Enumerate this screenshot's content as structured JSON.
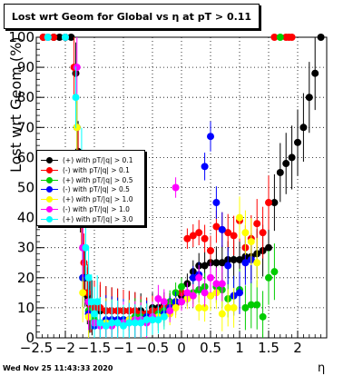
{
  "title": "Lost wrt Geom for Global vs   η at pT > 0.11",
  "footer": "Wed Nov 25 11:43:33 2020",
  "chart_data": {
    "type": "scatter",
    "xlabel": "η",
    "ylabel": "Lost wrt Geom (%)",
    "xlim": [
      -2.5,
      2.5
    ],
    "ylim": [
      0,
      100
    ],
    "x_ticks": [
      "-2.5",
      "-2",
      "-1.5",
      "-1",
      "-0.5",
      "0",
      "0.5",
      "1",
      "1.5",
      "2"
    ],
    "y_ticks": [
      "0",
      "10",
      "20",
      "30",
      "40",
      "50",
      "60",
      "70",
      "80",
      "90",
      "100"
    ],
    "grid": true,
    "legend_position": "left-middle",
    "series": [
      {
        "name": "(+) with pT/|q| > 0.1",
        "color": "#000000",
        "x": [
          -2.38,
          -2.3,
          -2.2,
          -2.1,
          -2.0,
          -1.9,
          -1.82,
          -1.78,
          -1.74,
          -1.7,
          -1.66,
          -1.62,
          -1.58,
          -1.54,
          -1.5,
          -1.4,
          -1.3,
          -1.2,
          -1.1,
          -1.0,
          -0.9,
          -0.8,
          -0.7,
          -0.6,
          -0.5,
          -0.4,
          -0.3,
          -0.2,
          -0.1,
          0.0,
          0.1,
          0.2,
          0.3,
          0.4,
          0.5,
          0.6,
          0.7,
          0.8,
          0.9,
          1.0,
          1.1,
          1.2,
          1.3,
          1.4,
          1.5,
          1.6,
          1.7,
          1.8,
          1.9,
          2.0,
          2.1,
          2.2,
          2.3,
          2.4
        ],
        "y": [
          100,
          100,
          100,
          100,
          100,
          100,
          88,
          62,
          45,
          30,
          20,
          14,
          11,
          10,
          10,
          9,
          9,
          9,
          9,
          9,
          9,
          9,
          9,
          8,
          10,
          10,
          11,
          11,
          12,
          14,
          18,
          22,
          24,
          24,
          25,
          25,
          25,
          26,
          26,
          26,
          27,
          27,
          28,
          29,
          30,
          45,
          55,
          58,
          60,
          65,
          70,
          80,
          88,
          100
        ]
      },
      {
        "name": "(-) with pT/|q| > 0.1",
        "color": "#ff0000",
        "x": [
          -2.38,
          -2.2,
          -2.0,
          -1.85,
          -1.78,
          -1.72,
          -1.68,
          -1.62,
          -1.56,
          -1.5,
          -1.4,
          -1.3,
          -1.2,
          -1.1,
          -1.0,
          -0.9,
          -0.8,
          -0.7,
          -0.6,
          -0.5,
          -0.4,
          -0.3,
          -0.2,
          -0.1,
          0.0,
          0.1,
          0.2,
          0.3,
          0.4,
          0.5,
          0.6,
          0.7,
          0.8,
          0.9,
          1.0,
          1.1,
          1.2,
          1.3,
          1.4,
          1.5,
          1.6,
          1.8,
          1.85,
          1.9
        ],
        "y": [
          100,
          100,
          100,
          90,
          60,
          40,
          25,
          15,
          11,
          10,
          10,
          9,
          9,
          9,
          9,
          9,
          9,
          8,
          8,
          9,
          9,
          10,
          11,
          11,
          15,
          33,
          34,
          35,
          33,
          29,
          37,
          36,
          35,
          34,
          39,
          30,
          33,
          38,
          35,
          45,
          100,
          100,
          100,
          100
        ]
      },
      {
        "name": "(+) with pT/|q| > 0.5",
        "color": "#00cc00",
        "x": [
          -2.3,
          -2.0,
          -1.8,
          -1.7,
          -1.6,
          -1.5,
          -1.4,
          -1.3,
          -1.2,
          -1.1,
          -1.0,
          -0.9,
          -0.8,
          -0.7,
          -0.6,
          -0.5,
          -0.4,
          -0.3,
          -0.2,
          -0.1,
          0.0,
          0.1,
          0.2,
          0.3,
          0.4,
          0.5,
          0.6,
          0.7,
          0.8,
          0.9,
          1.0,
          1.1,
          1.2,
          1.3,
          1.4,
          1.5,
          1.6,
          1.7
        ],
        "y": [
          100,
          100,
          70,
          20,
          9,
          6,
          5,
          5,
          5,
          6,
          6,
          6,
          7,
          7,
          6,
          7,
          8,
          9,
          12,
          15,
          17,
          14,
          15,
          16,
          17,
          14,
          17,
          16,
          13,
          14,
          16,
          10,
          11,
          11,
          7,
          20,
          22,
          100
        ]
      },
      {
        "name": "(-) with pT/|q| > 0.5",
        "color": "#0000ff",
        "x": [
          -2.3,
          -2.0,
          -1.8,
          -1.7,
          -1.6,
          -1.5,
          -1.4,
          -1.3,
          -1.2,
          -1.1,
          -1.0,
          -0.9,
          -0.8,
          -0.7,
          -0.6,
          -0.5,
          -0.4,
          -0.3,
          -0.2,
          -0.1,
          0.0,
          0.1,
          0.2,
          0.3,
          0.4,
          0.5,
          0.6,
          0.7,
          0.8,
          0.9,
          1.0,
          1.1,
          1.2
        ],
        "y": [
          100,
          100,
          70,
          20,
          8,
          4,
          5,
          6,
          6,
          6,
          6,
          6,
          6,
          6,
          7,
          7,
          7,
          8,
          10,
          12,
          12,
          14,
          20,
          21,
          57,
          67,
          45,
          36,
          24,
          14,
          15,
          25,
          26
        ]
      },
      {
        "name": "(+) with pT/|q| > 1.0",
        "color": "#ffff00",
        "x": [
          -2.3,
          -2.0,
          -1.8,
          -1.7,
          -1.6,
          -1.5,
          -1.4,
          -1.3,
          -1.2,
          -1.1,
          -1.0,
          -0.9,
          -0.8,
          -0.7,
          -0.6,
          -0.5,
          -0.4,
          -0.3,
          -0.2,
          -0.1,
          0.0,
          0.1,
          0.2,
          0.3,
          0.4,
          0.5,
          0.6,
          0.7,
          0.8,
          0.9,
          1.0,
          1.1,
          1.2,
          1.3
        ],
        "y": [
          100,
          100,
          70,
          15,
          7,
          5,
          5,
          5,
          5,
          5,
          5,
          6,
          6,
          6,
          6,
          6,
          7,
          7,
          8,
          10,
          12,
          13,
          14,
          10,
          10,
          14,
          15,
          8,
          10,
          10,
          40,
          35,
          32,
          25
        ]
      },
      {
        "name": "(-) with pT/|q| > 1.0",
        "color": "#ff00ff",
        "x": [
          -2.3,
          -2.0,
          -1.8,
          -1.7,
          -1.6,
          -1.5,
          -1.4,
          -1.3,
          -1.2,
          -1.1,
          -1.0,
          -0.9,
          -0.8,
          -0.7,
          -0.6,
          -0.5,
          -0.4,
          -0.3,
          -0.2,
          -0.1,
          0.0,
          0.1,
          0.2,
          0.3,
          0.4,
          0.5,
          0.6,
          0.7
        ],
        "y": [
          100,
          100,
          90,
          30,
          12,
          5,
          4,
          4,
          4,
          5,
          5,
          5,
          6,
          6,
          5,
          7,
          13,
          12,
          9,
          50,
          12,
          15,
          14,
          20,
          15,
          20,
          18,
          18
        ]
      },
      {
        "name": "(+) with pT/|q| > 3.0",
        "color": "#00ffff",
        "x": [
          -2.3,
          -2.0,
          -1.82,
          -1.72,
          -1.65,
          -1.6,
          -1.55,
          -1.5,
          -1.45,
          -1.4,
          -1.3,
          -1.2,
          -1.1,
          -1.0,
          -0.9,
          -0.8,
          -0.7,
          -0.6,
          -0.5,
          -0.4,
          -0.3
        ],
        "y": [
          100,
          100,
          80,
          60,
          30,
          20,
          12,
          8,
          12,
          5,
          4,
          5,
          5,
          4,
          5,
          5,
          5,
          6,
          6,
          6,
          7
        ]
      }
    ]
  }
}
